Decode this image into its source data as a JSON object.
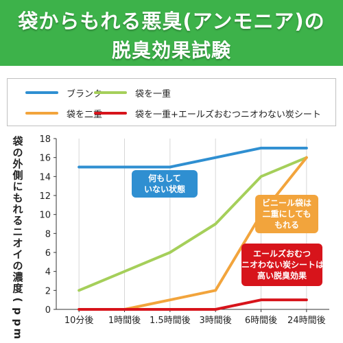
{
  "header": {
    "title_line1": "袋からもれる悪臭(アンモニア)の",
    "title_line2": "脱臭効果試験",
    "bg_color": "#3db24a"
  },
  "chart_data": {
    "type": "line",
    "title": "袋からもれる悪臭(アンモニア)の脱臭効果試験",
    "ylabel": "袋の外側にもれるニオイの濃度(ppm)",
    "xlabel": "",
    "categories": [
      "10分後",
      "1時間後",
      "1.5時間後",
      "3時間後",
      "6時間後",
      "24時間後"
    ],
    "ylim": [
      0,
      18
    ],
    "yticks": [
      0,
      2,
      4,
      6,
      8,
      10,
      12,
      14,
      16,
      18
    ],
    "grid": "vertical",
    "legend_position": "top",
    "series": [
      {
        "name": "ブランク",
        "color": "#2f8fd1",
        "values": [
          15,
          15,
          15,
          16,
          17,
          17
        ]
      },
      {
        "name": "袋を一重",
        "color": "#a5cf5a",
        "values": [
          2,
          4,
          6,
          9,
          14,
          16
        ]
      },
      {
        "name": "袋を二重",
        "color": "#f2a43c",
        "values": [
          0,
          0,
          1,
          2,
          10,
          16
        ]
      },
      {
        "name": "袋を一重+エールズおむつニオわない炭シート",
        "color": "#d7141b",
        "values": [
          0,
          0,
          0,
          0,
          1,
          1
        ]
      }
    ],
    "annotations": [
      {
        "lines": [
          "何もして",
          "いない状態"
        ],
        "color": "#2f8fd1"
      },
      {
        "lines": [
          "ビニール袋は",
          "二重にしても",
          "もれる"
        ],
        "color": "#f2a43c"
      },
      {
        "lines": [
          "エールズおむつ",
          "ニオわない炭シートは",
          "高い脱臭効果"
        ],
        "color": "#d7141b"
      }
    ]
  }
}
